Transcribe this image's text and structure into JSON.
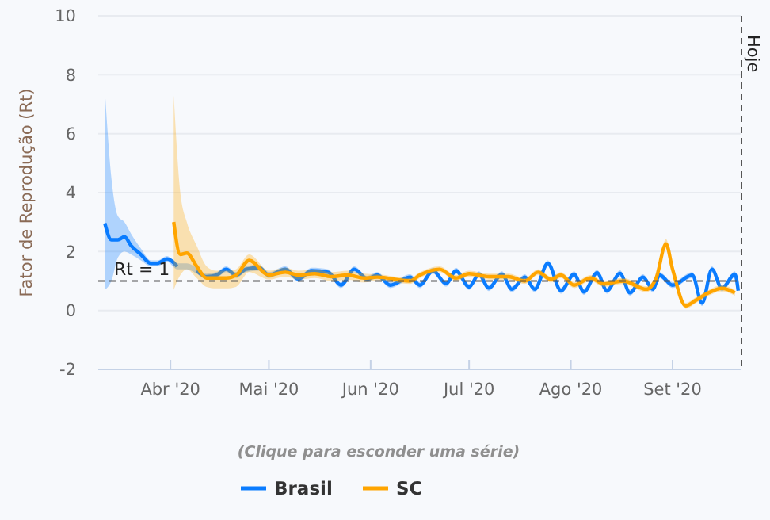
{
  "chart_data": {
    "type": "line",
    "ylabel": "Fator de Reprodução (Rt)",
    "ylim": [
      -2,
      10
    ],
    "yticks": [
      -2,
      0,
      2,
      4,
      6,
      8,
      10
    ],
    "xlim": [
      "2020-03-10",
      "2020-09-22"
    ],
    "xticks": [
      {
        "value": "2020-04-01",
        "label": "Abr '20"
      },
      {
        "value": "2020-05-01",
        "label": "Mai '20"
      },
      {
        "value": "2020-06-01",
        "label": "Jun '20"
      },
      {
        "value": "2020-07-01",
        "label": "Jul '20"
      },
      {
        "value": "2020-08-01",
        "label": "Ago '20"
      },
      {
        "value": "2020-09-01",
        "label": "Set '20"
      }
    ],
    "grid": "y",
    "legend": "bottom",
    "marker": "none",
    "line_style": "solid",
    "ref_lines": [
      {
        "axis": "y",
        "value": 1,
        "label": "Rt = 1",
        "color": "#555555",
        "line_style": "dashed"
      },
      {
        "axis": "x",
        "value": "2020-09-22",
        "label": "Hoje",
        "color": "#555555",
        "line_style": "dashed"
      }
    ],
    "annotations": [
      "(Clique para esconder uma série)"
    ],
    "series": [
      {
        "name": "Brasil",
        "color": "#0a7cff",
        "x": [
          "2020-03-12",
          "2020-03-14",
          "2020-03-16",
          "2020-03-18",
          "2020-03-20",
          "2020-03-23",
          "2020-03-26",
          "2020-03-28",
          "2020-03-31",
          "2020-04-03",
          "2020-04-06",
          "2020-04-09",
          "2020-04-12",
          "2020-04-15",
          "2020-04-18",
          "2020-04-21",
          "2020-04-24",
          "2020-04-28",
          "2020-05-01",
          "2020-05-06",
          "2020-05-10",
          "2020-05-14",
          "2020-05-19",
          "2020-05-23",
          "2020-05-27",
          "2020-05-31",
          "2020-06-03",
          "2020-06-07",
          "2020-06-13",
          "2020-06-16",
          "2020-06-20",
          "2020-06-24",
          "2020-06-27",
          "2020-07-01",
          "2020-07-04",
          "2020-07-07",
          "2020-07-11",
          "2020-07-14",
          "2020-07-18",
          "2020-07-21",
          "2020-07-25",
          "2020-07-29",
          "2020-08-02",
          "2020-08-05",
          "2020-08-09",
          "2020-08-12",
          "2020-08-16",
          "2020-08-19",
          "2020-08-23",
          "2020-08-26",
          "2020-08-28",
          "2020-09-01",
          "2020-09-07",
          "2020-09-10",
          "2020-09-13",
          "2020-09-16",
          "2020-09-20",
          "2020-09-21"
        ],
        "values": [
          2.96,
          2.4,
          2.4,
          2.5,
          2.2,
          1.9,
          1.6,
          1.6,
          1.75,
          1.5,
          null,
          1.35,
          1.15,
          1.2,
          1.4,
          1.2,
          1.4,
          1.45,
          1.2,
          1.4,
          1.07,
          1.35,
          1.3,
          0.86,
          1.4,
          1.07,
          1.2,
          0.86,
          1.13,
          0.86,
          1.35,
          0.91,
          1.35,
          0.8,
          1.23,
          0.76,
          1.23,
          0.72,
          1.13,
          0.72,
          1.6,
          0.67,
          1.23,
          0.63,
          1.28,
          0.67,
          1.26,
          0.6,
          1.13,
          0.72,
          1.2,
          0.86,
          1.2,
          0.25,
          1.4,
          0.75,
          1.23,
          0.67
        ],
        "lower": [
          0.7,
          1.0,
          1.8,
          2.0,
          1.9,
          1.7,
          1.5,
          1.5,
          1.65,
          1.4,
          1.4,
          1.25,
          1.05,
          1.1,
          1.3,
          1.1,
          1.3,
          1.35,
          1.1,
          1.3,
          0.97,
          1.25,
          1.2,
          0.76,
          1.3,
          0.97,
          1.1,
          0.76,
          1.03,
          0.76,
          1.25,
          0.81,
          1.25,
          0.7,
          1.13,
          0.66,
          1.13,
          0.62,
          1.03,
          0.62,
          1.5,
          0.57,
          1.13,
          0.53,
          1.18,
          0.57,
          1.16,
          0.5,
          1.03,
          0.62,
          1.1,
          0.76,
          1.1,
          0.15,
          1.3,
          0.65,
          1.13,
          0.57
        ],
        "upper": [
          7.5,
          4.5,
          3.2,
          3.0,
          2.6,
          2.1,
          1.7,
          1.7,
          1.85,
          1.6,
          1.6,
          1.45,
          1.25,
          1.3,
          1.5,
          1.3,
          1.5,
          1.55,
          1.3,
          1.5,
          1.17,
          1.45,
          1.4,
          0.96,
          1.5,
          1.17,
          1.3,
          0.96,
          1.23,
          0.96,
          1.45,
          1.01,
          1.45,
          0.9,
          1.33,
          0.86,
          1.33,
          0.82,
          1.23,
          0.82,
          1.7,
          0.77,
          1.33,
          0.73,
          1.38,
          0.77,
          1.36,
          0.7,
          1.23,
          0.82,
          1.3,
          0.96,
          1.3,
          0.35,
          1.5,
          0.85,
          1.33,
          0.77
        ]
      },
      {
        "name": "SC",
        "color": "#ffa500",
        "x": [
          "2020-04-02",
          "2020-04-04",
          "2020-04-06",
          "2020-04-09",
          "2020-04-12",
          "2020-04-15",
          "2020-04-18",
          "2020-04-21",
          "2020-04-25",
          "2020-05-01",
          "2020-05-06",
          "2020-05-10",
          "2020-05-15",
          "2020-05-20",
          "2020-05-25",
          "2020-05-30",
          "2020-06-03",
          "2020-06-13",
          "2020-06-16",
          "2020-06-22",
          "2020-06-27",
          "2020-07-01",
          "2020-07-07",
          "2020-07-13",
          "2020-07-18",
          "2020-07-22",
          "2020-07-26",
          "2020-07-29",
          "2020-08-02",
          "2020-08-07",
          "2020-08-11",
          "2020-08-17",
          "2020-08-24",
          "2020-08-27",
          "2020-08-30",
          "2020-09-01",
          "2020-09-05",
          "2020-09-08",
          "2020-09-12",
          "2020-09-16",
          "2020-09-20"
        ],
        "values": [
          3.0,
          1.9,
          1.95,
          1.5,
          1.1,
          1.1,
          1.1,
          1.2,
          1.7,
          1.2,
          1.3,
          1.2,
          1.25,
          1.15,
          1.2,
          1.1,
          1.13,
          1.0,
          1.2,
          1.4,
          1.1,
          1.25,
          1.15,
          1.15,
          1.0,
          1.3,
          1.05,
          1.2,
          0.86,
          1.1,
          0.9,
          1.0,
          0.72,
          1.1,
          2.26,
          1.4,
          0.16,
          0.34,
          0.6,
          0.75,
          0.6
        ],
        "lower": [
          0.7,
          1.2,
          1.4,
          1.1,
          0.8,
          0.75,
          0.75,
          0.8,
          1.3,
          1.05,
          1.15,
          1.05,
          1.1,
          1.0,
          1.05,
          0.95,
          1.03,
          0.9,
          1.1,
          1.3,
          1.0,
          1.15,
          1.05,
          1.05,
          0.9,
          1.2,
          0.95,
          1.1,
          0.76,
          1.0,
          0.8,
          0.9,
          0.62,
          1.0,
          2.1,
          1.3,
          0.06,
          0.24,
          0.5,
          0.65,
          0.5
        ],
        "upper": [
          7.3,
          4.0,
          3.0,
          2.2,
          1.5,
          1.35,
          1.35,
          1.4,
          1.9,
          1.35,
          1.45,
          1.35,
          1.4,
          1.3,
          1.35,
          1.25,
          1.23,
          1.1,
          1.3,
          1.5,
          1.2,
          1.35,
          1.25,
          1.25,
          1.1,
          1.4,
          1.15,
          1.3,
          0.96,
          1.2,
          1.0,
          1.1,
          0.82,
          1.2,
          2.42,
          1.5,
          0.26,
          0.44,
          0.7,
          0.85,
          0.7
        ]
      }
    ]
  }
}
